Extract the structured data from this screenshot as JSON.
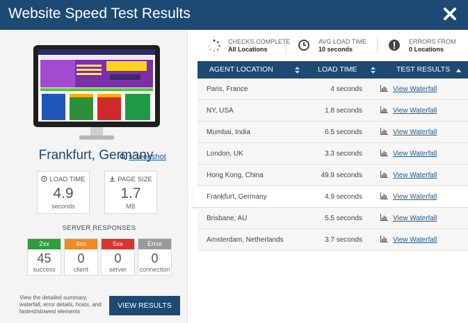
{
  "header": {
    "title": "Website Speed Test Results"
  },
  "left": {
    "screenshot_link": "screenshot",
    "location": "Frankfurt, Germany",
    "load_time": {
      "label": "LOAD TIME",
      "value": "4.9",
      "unit": "seconds"
    },
    "page_size": {
      "label": "PAGE SIZE",
      "value": "1.7",
      "unit": "MB"
    },
    "server_responses_title": "SERVER RESPONSES",
    "responses": [
      {
        "code": "2xx",
        "count": "45",
        "label": "success",
        "color": "#2e9e3c"
      },
      {
        "code": "4xx",
        "count": "0",
        "label": "client",
        "color": "#f08a24"
      },
      {
        "code": "5xx",
        "count": "0",
        "label": "server",
        "color": "#d9342b"
      },
      {
        "code": "Error",
        "count": "0",
        "label": "connection",
        "color": "#9a9a9a"
      }
    ],
    "summary": "View the detailed summary, waterfall, error details, hosts, and fastest/slowest elements",
    "view_results_label": "VIEW RESULTS"
  },
  "stats": [
    {
      "icon": "spinner-icon",
      "label": "CHECKS COMPLETE",
      "value": "All Locations"
    },
    {
      "icon": "clock-icon",
      "label": "AVG LOAD TIME",
      "value": "10 seconds"
    },
    {
      "icon": "alert-icon",
      "label": "ERRORS FROM",
      "value": "0 Locations"
    }
  ],
  "table": {
    "columns": [
      "AGENT LOCATION",
      "LOAD TIME",
      "TEST RESULTS"
    ],
    "link_label": "View Waterfall",
    "rows": [
      {
        "location": "Paris, France",
        "time": "4 seconds"
      },
      {
        "location": "NY, USA",
        "time": "1.8 seconds"
      },
      {
        "location": "Mumbai, India",
        "time": "6.5 seconds"
      },
      {
        "location": "London, UK",
        "time": "3.3 seconds"
      },
      {
        "location": "Hong Kong, China",
        "time": "49.9 seconds"
      },
      {
        "location": "Frankfurt, Germany",
        "time": "4.9 seconds"
      },
      {
        "location": "Brisbane, AU",
        "time": "5.5 seconds"
      },
      {
        "location": "Amsterdam, Netherlands",
        "time": "3.7 seconds"
      }
    ]
  },
  "colors": {
    "header_bg": "#1c4a72",
    "link": "#1d5a8e"
  }
}
